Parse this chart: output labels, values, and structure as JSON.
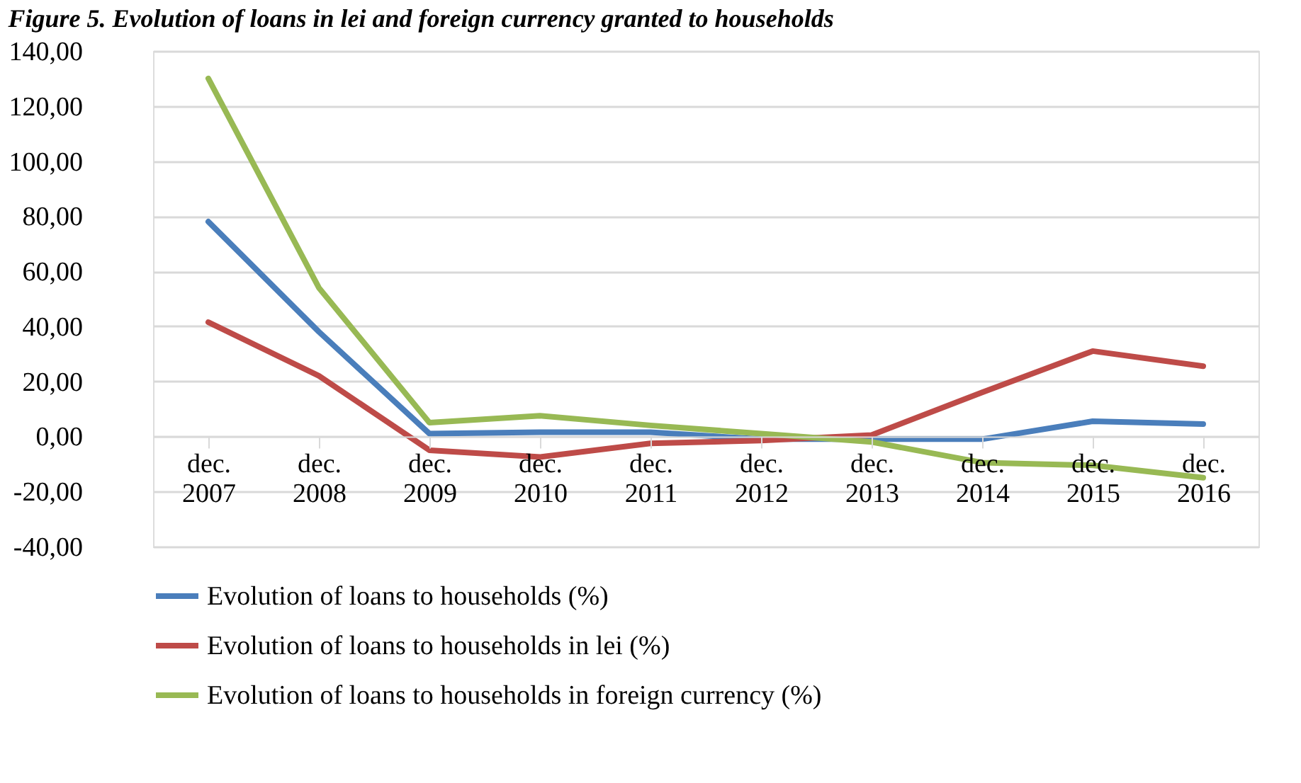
{
  "chart_data": {
    "type": "line",
    "title": "Figure 5. Evolution of loans in lei and foreign currency granted to households",
    "categories": [
      "dec. 2007",
      "dec. 2008",
      "dec. 2009",
      "dec. 2010",
      "dec. 2011",
      "dec. 2012",
      "dec. 2013",
      "dec. 2014",
      "dec. 2015",
      "dec. 2016"
    ],
    "series": [
      {
        "name": "Evolution of loans to households (%)",
        "color": "#4a7ebb",
        "values": [
          78,
          38,
          1,
          1.5,
          1.5,
          -1,
          -1,
          -1,
          5.5,
          4.5
        ]
      },
      {
        "name": "Evolution of loans to households in lei (%)",
        "color": "#be4b48",
        "values": [
          41.5,
          22,
          -5,
          -7.5,
          -2.5,
          -1.5,
          0.5,
          16,
          31,
          25.5
        ]
      },
      {
        "name": "Evolution of loans to households in foreign currency (%)",
        "color": "#98b954",
        "values": [
          130,
          54,
          5,
          7.5,
          4,
          1,
          -2,
          -9.5,
          -10.5,
          -15
        ]
      }
    ],
    "ylim": [
      -40,
      140
    ],
    "yticks": [
      {
        "value": -40,
        "label": "-40,00"
      },
      {
        "value": -20,
        "label": "-20,00"
      },
      {
        "value": 0,
        "label": "0,00"
      },
      {
        "value": 20,
        "label": "20,00"
      },
      {
        "value": 40,
        "label": "40,00"
      },
      {
        "value": 60,
        "label": "60,00"
      },
      {
        "value": 80,
        "label": "80,00"
      },
      {
        "value": 100,
        "label": "100,00"
      },
      {
        "value": 120,
        "label": "120,00"
      },
      {
        "value": 140,
        "label": "140,00"
      }
    ],
    "grid": "y",
    "legend": "bottom",
    "marker": "none",
    "line_style": "solid"
  }
}
